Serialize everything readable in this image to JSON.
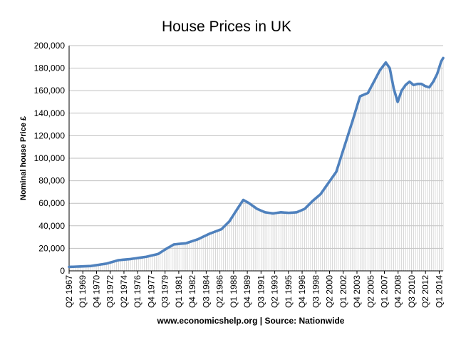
{
  "chart_data": {
    "type": "line",
    "title": "House Prices in UK",
    "xlabel": "",
    "ylabel": "Nominal house Price £",
    "source_note": "www.economicshelp.org | Source: Nationwide",
    "ylim": [
      0,
      200000
    ],
    "y_ticks": [
      {
        "value": 0,
        "label": "0"
      },
      {
        "value": 20000,
        "label": "20,000"
      },
      {
        "value": 40000,
        "label": "40,000"
      },
      {
        "value": 60000,
        "label": "60,000"
      },
      {
        "value": 80000,
        "label": "80,000"
      },
      {
        "value": 100000,
        "label": "100,000"
      },
      {
        "value": 120000,
        "label": "120,000"
      },
      {
        "value": 140000,
        "label": "140,000"
      },
      {
        "value": 160000,
        "label": "160,000"
      },
      {
        "value": 180000,
        "label": "180,000"
      },
      {
        "value": 200000,
        "label": "200,000"
      }
    ],
    "x_tick_labels": [
      "Q2 1967",
      "Q1 1969",
      "Q4 1970",
      "Q3 1972",
      "Q2 1974",
      "Q1 1976",
      "Q4 1977",
      "Q3 1979",
      "Q1 1981",
      "Q4 1982",
      "Q3 1984",
      "Q2 1986",
      "Q1 1988",
      "Q4 1989",
      "Q3 1991",
      "Q2 1993",
      "Q1 1995",
      "Q4 1996",
      "Q3 1998",
      "Q2 2000",
      "Q1 2002",
      "Q4 2003",
      "Q2 2005",
      "Q1 2007",
      "Q4 2008",
      "Q3 2010",
      "Q2 2012",
      "Q1 2014"
    ],
    "grid": true,
    "legend": "none",
    "colors": {
      "line": "#4f81bd",
      "drop_lines": "#c8c8c8",
      "grid": "#bfbfbf"
    },
    "series": [
      {
        "x": [
          1967.25,
          1970,
          1972,
          1973.5,
          1975,
          1977,
          1978.5,
          1979.5,
          1980.5,
          1982,
          1983.5,
          1985,
          1986.5,
          1987.5,
          1988.5,
          1989.25,
          1990,
          1991,
          1992,
          1993,
          1994,
          1995,
          1996,
          1997,
          1998,
          1999,
          2000,
          2001,
          2002,
          2003,
          2004,
          2005,
          2005.75,
          2006.5,
          2007.25,
          2007.75,
          2008.25,
          2008.75,
          2009.25,
          2009.75,
          2010.25,
          2010.75,
          2011.25,
          2011.75,
          2012.25,
          2012.75,
          2013.25,
          2013.75,
          2014.25,
          2014.5
        ],
        "values": [
          3500,
          4300,
          6500,
          9500,
          10500,
          12500,
          15000,
          19500,
          23500,
          24500,
          28000,
          33000,
          37000,
          44000,
          55000,
          63000,
          60000,
          55000,
          52000,
          51000,
          52000,
          51500,
          52000,
          55000,
          62000,
          68000,
          78000,
          88000,
          110000,
          132000,
          155000,
          158000,
          168000,
          178000,
          185000,
          180000,
          162000,
          150000,
          160000,
          165000,
          168000,
          165000,
          166000,
          166000,
          164000,
          163000,
          168000,
          175000,
          186000,
          189000
        ]
      }
    ]
  }
}
